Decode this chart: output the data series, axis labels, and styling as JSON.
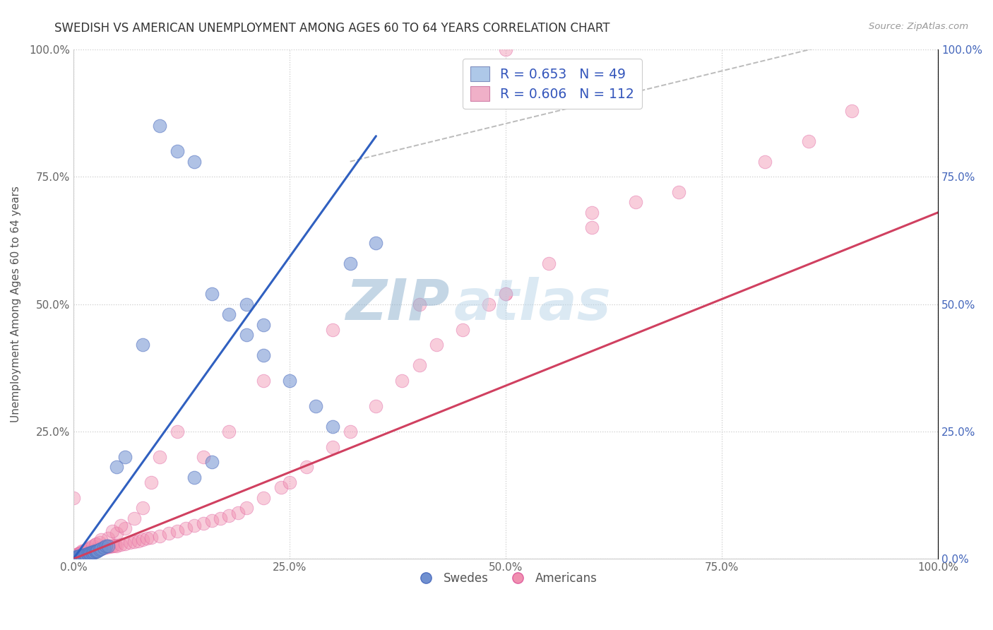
{
  "title": "SWEDISH VS AMERICAN UNEMPLOYMENT AMONG AGES 60 TO 64 YEARS CORRELATION CHART",
  "source": "Source: ZipAtlas.com",
  "ylabel": "Unemployment Among Ages 60 to 64 years",
  "xlim": [
    0,
    1.0
  ],
  "ylim": [
    0,
    1.0
  ],
  "xticks": [
    0.0,
    0.25,
    0.5,
    0.75,
    1.0
  ],
  "yticks": [
    0.0,
    0.25,
    0.5,
    0.75,
    1.0
  ],
  "xticklabels": [
    "0.0%",
    "25.0%",
    "50.0%",
    "75.0%",
    "100.0%"
  ],
  "left_yticklabels": [
    "",
    "25.0%",
    "50.0%",
    "75.0%",
    "100.0%"
  ],
  "right_yticklabels": [
    "0.0%",
    "25.0%",
    "50.0%",
    "75.0%",
    "100.0%"
  ],
  "blue_color": "#7090D0",
  "pink_color": "#F090B0",
  "blue_line_color": "#3060C0",
  "pink_line_color": "#D04060",
  "legend_label_swedes": "Swedes",
  "legend_label_americans": "Americans",
  "watermark_zip": "ZIP",
  "watermark_atlas": "atlas",
  "background_color": "#FFFFFF",
  "swedes_x": [
    0.001,
    0.003,
    0.005,
    0.006,
    0.007,
    0.008,
    0.009,
    0.01,
    0.012,
    0.013,
    0.014,
    0.015,
    0.016,
    0.017,
    0.018,
    0.019,
    0.02,
    0.021,
    0.022,
    0.023,
    0.024,
    0.025,
    0.026,
    0.027,
    0.028,
    0.03,
    0.032,
    0.035,
    0.038,
    0.04,
    0.05,
    0.06,
    0.08,
    0.1,
    0.12,
    0.14,
    0.16,
    0.18,
    0.2,
    0.22,
    0.25,
    0.28,
    0.3,
    0.14,
    0.16,
    0.2,
    0.22,
    0.32,
    0.35
  ],
  "swedes_y": [
    0.002,
    0.004,
    0.004,
    0.005,
    0.006,
    0.005,
    0.007,
    0.006,
    0.008,
    0.007,
    0.009,
    0.008,
    0.01,
    0.009,
    0.012,
    0.01,
    0.011,
    0.013,
    0.012,
    0.014,
    0.013,
    0.015,
    0.014,
    0.016,
    0.015,
    0.018,
    0.02,
    0.022,
    0.025,
    0.026,
    0.18,
    0.2,
    0.42,
    0.85,
    0.8,
    0.78,
    0.52,
    0.48,
    0.44,
    0.4,
    0.35,
    0.3,
    0.26,
    0.16,
    0.19,
    0.5,
    0.46,
    0.58,
    0.62
  ],
  "americans_x": [
    0.0,
    0.001,
    0.002,
    0.003,
    0.004,
    0.005,
    0.006,
    0.007,
    0.008,
    0.009,
    0.01,
    0.011,
    0.012,
    0.013,
    0.014,
    0.015,
    0.016,
    0.017,
    0.018,
    0.019,
    0.02,
    0.021,
    0.022,
    0.023,
    0.024,
    0.025,
    0.026,
    0.027,
    0.028,
    0.029,
    0.03,
    0.032,
    0.034,
    0.036,
    0.038,
    0.04,
    0.042,
    0.044,
    0.046,
    0.048,
    0.05,
    0.055,
    0.06,
    0.065,
    0.07,
    0.075,
    0.08,
    0.085,
    0.09,
    0.1,
    0.11,
    0.12,
    0.13,
    0.14,
    0.15,
    0.16,
    0.17,
    0.18,
    0.19,
    0.2,
    0.22,
    0.24,
    0.25,
    0.27,
    0.3,
    0.32,
    0.35,
    0.38,
    0.4,
    0.42,
    0.45,
    0.48,
    0.5,
    0.55,
    0.6,
    0.65,
    0.7,
    0.8,
    0.85,
    0.9,
    0.005,
    0.008,
    0.01,
    0.015,
    0.02,
    0.025,
    0.03,
    0.04,
    0.05,
    0.06,
    0.07,
    0.08,
    0.09,
    0.1,
    0.12,
    0.15,
    0.18,
    0.22,
    0.3,
    0.4,
    0.5,
    0.6,
    0.003,
    0.006,
    0.009,
    0.012,
    0.018,
    0.022,
    0.026,
    0.032,
    0.045,
    0.055,
    0.5
  ],
  "americans_y": [
    0.12,
    0.005,
    0.006,
    0.007,
    0.006,
    0.008,
    0.007,
    0.009,
    0.008,
    0.01,
    0.009,
    0.011,
    0.01,
    0.012,
    0.011,
    0.013,
    0.012,
    0.014,
    0.013,
    0.015,
    0.014,
    0.016,
    0.015,
    0.017,
    0.016,
    0.018,
    0.017,
    0.019,
    0.018,
    0.02,
    0.019,
    0.022,
    0.021,
    0.024,
    0.023,
    0.025,
    0.024,
    0.026,
    0.025,
    0.027,
    0.026,
    0.028,
    0.03,
    0.032,
    0.034,
    0.035,
    0.038,
    0.04,
    0.042,
    0.045,
    0.05,
    0.055,
    0.06,
    0.065,
    0.07,
    0.075,
    0.08,
    0.085,
    0.09,
    0.1,
    0.12,
    0.14,
    0.15,
    0.18,
    0.22,
    0.25,
    0.3,
    0.35,
    0.38,
    0.42,
    0.45,
    0.5,
    0.52,
    0.58,
    0.65,
    0.7,
    0.72,
    0.78,
    0.82,
    0.88,
    0.01,
    0.012,
    0.015,
    0.018,
    0.022,
    0.028,
    0.032,
    0.04,
    0.05,
    0.06,
    0.08,
    0.1,
    0.15,
    0.2,
    0.25,
    0.2,
    0.25,
    0.35,
    0.45,
    0.5,
    0.52,
    0.68,
    0.008,
    0.01,
    0.013,
    0.016,
    0.02,
    0.025,
    0.03,
    0.038,
    0.055,
    0.065,
    1.0
  ],
  "blue_line_x": [
    0.0,
    0.35
  ],
  "blue_line_y": [
    0.0,
    0.83
  ],
  "pink_line_x": [
    0.0,
    1.0
  ],
  "pink_line_y": [
    0.0,
    0.68
  ],
  "diag_line_x": [
    0.32,
    0.9
  ],
  "diag_line_y": [
    0.78,
    1.02
  ]
}
